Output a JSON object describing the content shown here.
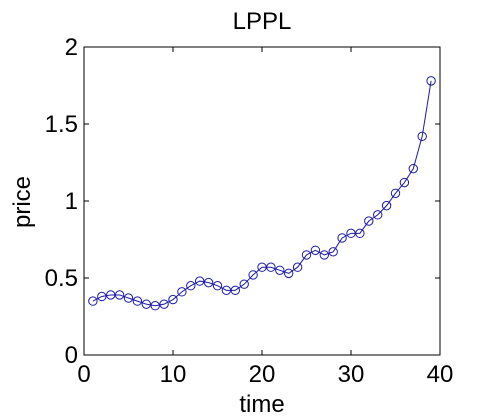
{
  "chart_data": {
    "type": "line",
    "title": "LPPL",
    "xlabel": "time",
    "ylabel": "price",
    "xlim": [
      0,
      40
    ],
    "ylim": [
      0,
      2
    ],
    "xticks": [
      "0",
      "10",
      "20",
      "30",
      "40"
    ],
    "yticks": [
      "0",
      "0.5",
      "1",
      "1.5",
      "2"
    ],
    "grid": false,
    "marker": "circle",
    "series_color": "#1a1aa6",
    "x": [
      1,
      2,
      3,
      4,
      5,
      6,
      7,
      8,
      9,
      10,
      11,
      12,
      13,
      14,
      15,
      16,
      17,
      18,
      19,
      20,
      21,
      22,
      23,
      24,
      25,
      26,
      27,
      28,
      29,
      30,
      31,
      32,
      33,
      34,
      35,
      36,
      37,
      38,
      39
    ],
    "series": [
      {
        "values": [
          0.35,
          0.38,
          0.39,
          0.39,
          0.37,
          0.35,
          0.33,
          0.32,
          0.33,
          0.36,
          0.41,
          0.45,
          0.48,
          0.47,
          0.45,
          0.42,
          0.42,
          0.46,
          0.52,
          0.57,
          0.57,
          0.55,
          0.53,
          0.57,
          0.65,
          0.68,
          0.65,
          0.67,
          0.76,
          0.79,
          0.79,
          0.87,
          0.91,
          0.97,
          1.05,
          1.12,
          1.21,
          1.42,
          1.78
        ]
      }
    ]
  }
}
